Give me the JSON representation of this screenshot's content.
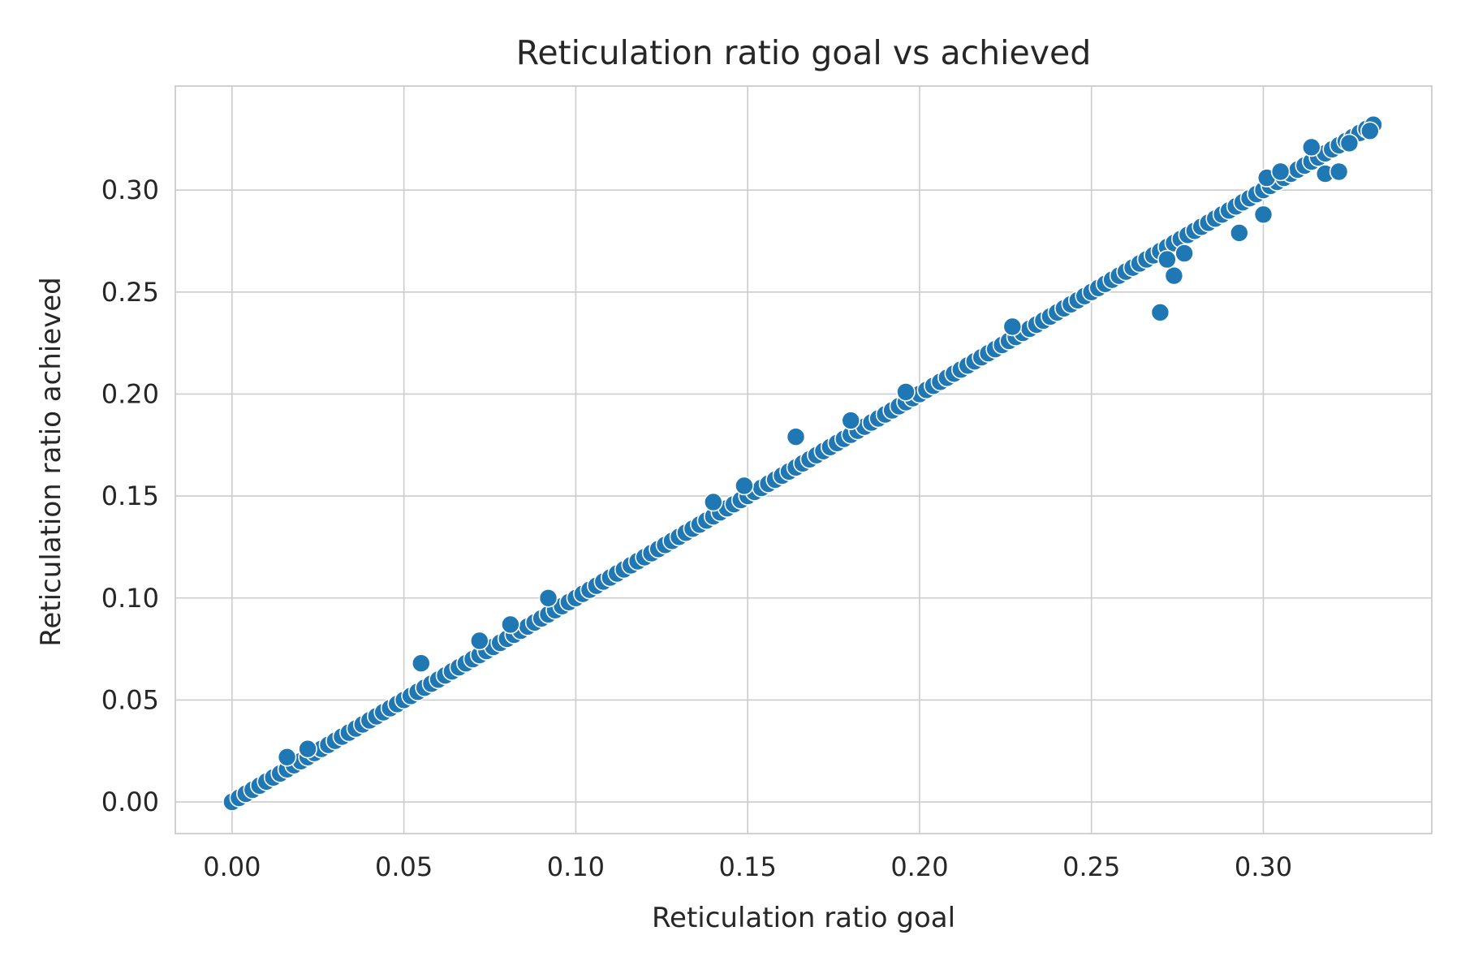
{
  "chart_data": {
    "type": "scatter",
    "title": "Reticulation ratio goal vs achieved",
    "xlabel": "Reticulation ratio goal",
    "ylabel": "Reticulation ratio achieved",
    "xlim": [
      -0.0165,
      0.349
    ],
    "ylim": [
      -0.0155,
      0.351
    ],
    "xticks": [
      "0.00",
      "0.05",
      "0.10",
      "0.15",
      "0.20",
      "0.25",
      "0.30"
    ],
    "yticks": [
      "0.00",
      "0.05",
      "0.10",
      "0.15",
      "0.20",
      "0.25",
      "0.30"
    ],
    "grid": true,
    "marker_color": "#1f77b4",
    "marker_edge_color": "#ffffff",
    "series": [
      {
        "x": [
          0.0,
          0.002,
          0.004,
          0.006,
          0.008,
          0.01,
          0.012,
          0.014,
          0.016,
          0.018,
          0.02,
          0.022,
          0.024,
          0.026,
          0.028,
          0.03,
          0.032,
          0.034,
          0.036,
          0.038,
          0.04,
          0.042,
          0.044,
          0.046,
          0.048,
          0.05,
          0.052,
          0.054,
          0.056,
          0.058,
          0.06,
          0.062,
          0.064,
          0.066,
          0.068,
          0.07,
          0.072,
          0.074,
          0.076,
          0.078,
          0.08,
          0.082,
          0.084,
          0.086,
          0.088,
          0.09,
          0.092,
          0.094,
          0.096,
          0.098,
          0.1,
          0.102,
          0.104,
          0.106,
          0.108,
          0.11,
          0.112,
          0.114,
          0.116,
          0.118,
          0.12,
          0.122,
          0.124,
          0.126,
          0.128,
          0.13,
          0.132,
          0.134,
          0.136,
          0.138,
          0.14,
          0.142,
          0.144,
          0.146,
          0.148,
          0.15,
          0.152,
          0.154,
          0.156,
          0.158,
          0.16,
          0.162,
          0.164,
          0.166,
          0.168,
          0.17,
          0.172,
          0.174,
          0.176,
          0.178,
          0.18,
          0.182,
          0.184,
          0.186,
          0.188,
          0.19,
          0.192,
          0.194,
          0.196,
          0.198,
          0.2,
          0.202,
          0.204,
          0.206,
          0.208,
          0.21,
          0.212,
          0.214,
          0.216,
          0.218,
          0.22,
          0.222,
          0.224,
          0.226,
          0.228,
          0.23,
          0.232,
          0.234,
          0.236,
          0.238,
          0.24,
          0.242,
          0.244,
          0.246,
          0.248,
          0.25,
          0.252,
          0.254,
          0.256,
          0.258,
          0.26,
          0.262,
          0.264,
          0.266,
          0.268,
          0.27,
          0.272,
          0.274,
          0.276,
          0.278,
          0.28,
          0.282,
          0.284,
          0.286,
          0.288,
          0.29,
          0.292,
          0.294,
          0.296,
          0.298,
          0.3,
          0.302,
          0.304,
          0.306,
          0.308,
          0.31,
          0.312,
          0.314,
          0.316,
          0.318,
          0.32,
          0.322,
          0.324,
          0.326,
          0.328,
          0.33,
          0.332,
          0.016,
          0.022,
          0.055,
          0.072,
          0.081,
          0.092,
          0.14,
          0.149,
          0.164,
          0.18,
          0.196,
          0.227,
          0.27,
          0.274,
          0.272,
          0.277,
          0.293,
          0.301,
          0.305,
          0.3,
          0.318,
          0.322,
          0.314,
          0.325,
          0.331
        ],
        "y": [
          0.0,
          0.002,
          0.004,
          0.006,
          0.008,
          0.01,
          0.012,
          0.014,
          0.016,
          0.018,
          0.02,
          0.022,
          0.024,
          0.026,
          0.028,
          0.03,
          0.032,
          0.034,
          0.036,
          0.038,
          0.04,
          0.042,
          0.044,
          0.046,
          0.048,
          0.05,
          0.052,
          0.054,
          0.056,
          0.058,
          0.06,
          0.062,
          0.064,
          0.066,
          0.068,
          0.07,
          0.072,
          0.074,
          0.076,
          0.078,
          0.08,
          0.082,
          0.084,
          0.086,
          0.088,
          0.09,
          0.092,
          0.094,
          0.096,
          0.098,
          0.1,
          0.102,
          0.104,
          0.106,
          0.108,
          0.11,
          0.112,
          0.114,
          0.116,
          0.118,
          0.12,
          0.122,
          0.124,
          0.126,
          0.128,
          0.13,
          0.132,
          0.134,
          0.136,
          0.138,
          0.14,
          0.142,
          0.144,
          0.146,
          0.148,
          0.15,
          0.152,
          0.154,
          0.156,
          0.158,
          0.16,
          0.162,
          0.164,
          0.166,
          0.168,
          0.17,
          0.172,
          0.174,
          0.176,
          0.178,
          0.18,
          0.182,
          0.184,
          0.186,
          0.188,
          0.19,
          0.192,
          0.194,
          0.196,
          0.198,
          0.2,
          0.202,
          0.204,
          0.206,
          0.208,
          0.21,
          0.212,
          0.214,
          0.216,
          0.218,
          0.22,
          0.222,
          0.224,
          0.226,
          0.228,
          0.23,
          0.232,
          0.234,
          0.236,
          0.238,
          0.24,
          0.242,
          0.244,
          0.246,
          0.248,
          0.25,
          0.252,
          0.254,
          0.256,
          0.258,
          0.26,
          0.262,
          0.264,
          0.266,
          0.268,
          0.27,
          0.272,
          0.274,
          0.276,
          0.278,
          0.28,
          0.282,
          0.284,
          0.286,
          0.288,
          0.29,
          0.292,
          0.294,
          0.296,
          0.298,
          0.3,
          0.302,
          0.304,
          0.306,
          0.308,
          0.31,
          0.312,
          0.314,
          0.316,
          0.318,
          0.32,
          0.322,
          0.324,
          0.326,
          0.328,
          0.33,
          0.332,
          0.022,
          0.026,
          0.068,
          0.079,
          0.087,
          0.1,
          0.147,
          0.155,
          0.179,
          0.187,
          0.201,
          0.233,
          0.24,
          0.258,
          0.266,
          0.269,
          0.279,
          0.306,
          0.309,
          0.288,
          0.308,
          0.309,
          0.321,
          0.323,
          0.329
        ]
      }
    ]
  }
}
